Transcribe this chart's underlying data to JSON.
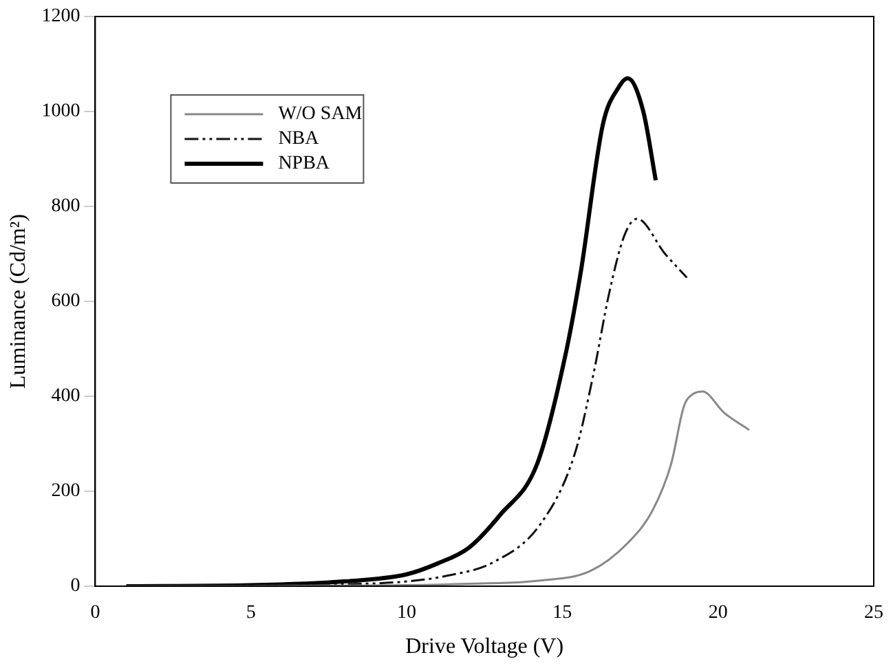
{
  "chart_data": {
    "type": "line",
    "xlabel": "Drive Voltage (V)",
    "ylabel": "Luminance (Cd/m²)",
    "xlim": [
      0,
      25
    ],
    "xticks": [
      0,
      5,
      10,
      15,
      20,
      25
    ],
    "ylim": [
      0,
      1200
    ],
    "yticks": [
      0,
      200,
      400,
      600,
      800,
      1000,
      1200
    ],
    "grid": false,
    "legend": "top left",
    "marker": "none",
    "series": [
      {
        "name": "W/O SAM",
        "color": "#888888",
        "line_style": "solid",
        "x": [
          1,
          5,
          10,
          12,
          14.3,
          15.9,
          17.1,
          17.9,
          18.5,
          18.9,
          19.2,
          19.5,
          20.2,
          21
        ],
        "values": [
          0,
          0,
          2,
          5,
          12,
          32,
          91,
          160,
          259,
          378,
          405,
          410,
          365,
          329
        ]
      },
      {
        "name": "NBA",
        "color": "#111111",
        "line_style": "dashdotdot",
        "x": [
          1,
          5,
          8,
          10,
          11.3,
          12.8,
          14.3,
          15.4,
          16,
          16.5,
          17,
          17.4,
          18.3,
          19
        ],
        "values": [
          0,
          1,
          4,
          10,
          22,
          51,
          131,
          279,
          447,
          616,
          740,
          774,
          700,
          650
        ]
      },
      {
        "name": "NPBA",
        "color": "#000000",
        "line_style": "solid",
        "x": [
          1,
          5,
          8,
          10,
          11,
          12,
          13,
          14.2,
          15.1,
          15.6,
          16.3,
          16.8,
          17.1,
          17.6,
          18
        ],
        "values": [
          0,
          2,
          10,
          25,
          48,
          81,
          150,
          259,
          487,
          665,
          972,
          1050,
          1070,
          1000,
          855
        ]
      }
    ]
  }
}
